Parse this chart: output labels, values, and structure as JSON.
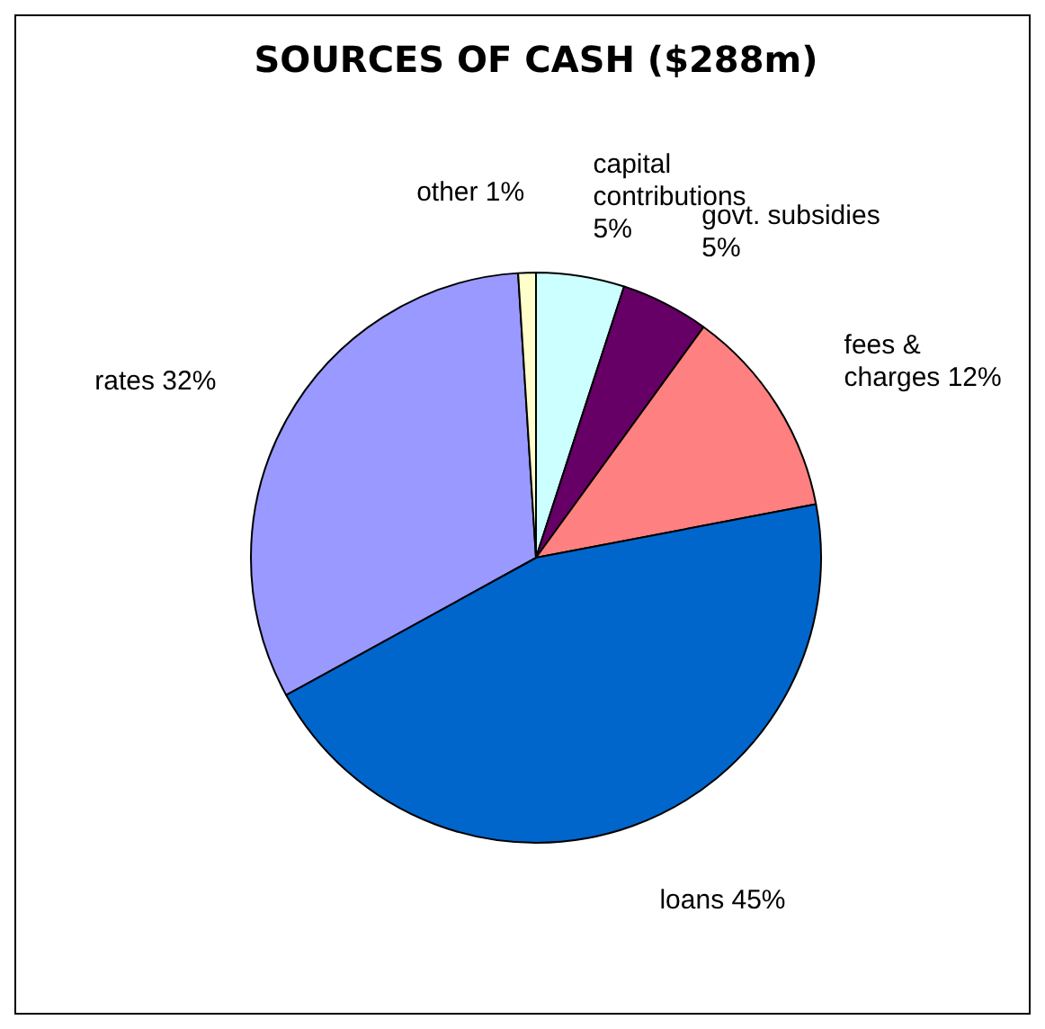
{
  "chart_data": {
    "type": "pie",
    "title": "SOURCES OF CASH ($288m)",
    "categories": [
      "capital contributions",
      "govt. subsidies",
      "fees & charges",
      "loans",
      "rates",
      "other"
    ],
    "values": [
      5,
      5,
      12,
      45,
      32,
      1
    ],
    "value_labels": [
      "5%",
      "5%",
      "12%",
      "45%",
      "32%",
      "1%"
    ],
    "colors": [
      "#ccffff",
      "#660066",
      "#ff8080",
      "#0066cc",
      "#9999ff",
      "#ffffcc"
    ],
    "legend": false
  }
}
